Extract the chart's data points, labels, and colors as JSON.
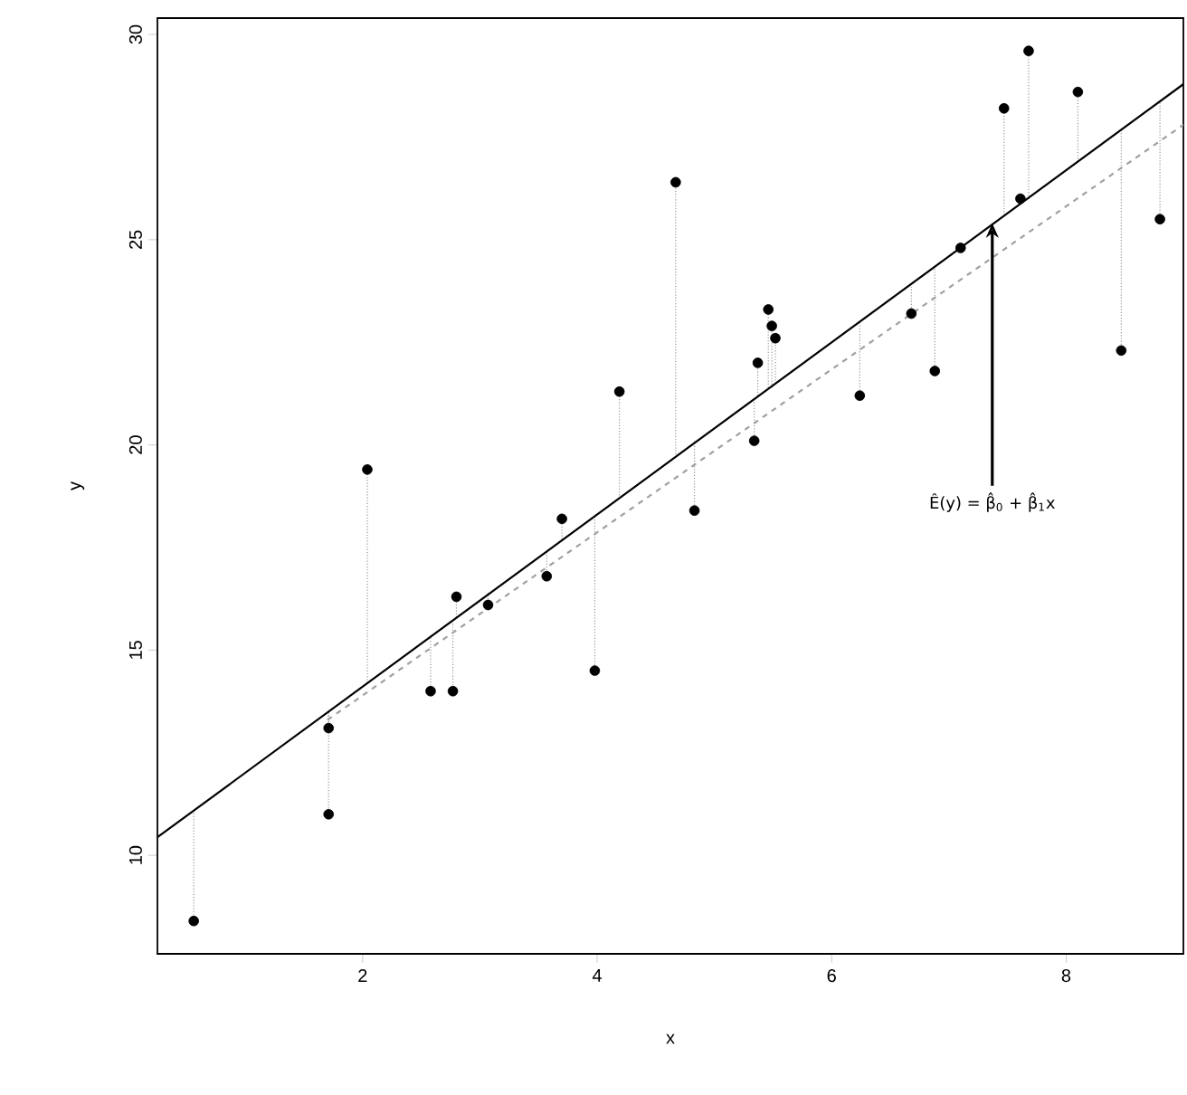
{
  "chart_data": {
    "type": "scatter",
    "xlabel": "x",
    "ylabel": "y",
    "xlim": [
      0.25,
      9.0
    ],
    "ylim": [
      7.6,
      30.4
    ],
    "xticks": [
      2,
      4,
      6,
      8
    ],
    "yticks": [
      10,
      15,
      20,
      25,
      30
    ],
    "series": [
      {
        "color": "#000000",
        "marker": "circle",
        "x": [
          0.56,
          1.71,
          1.71,
          2.04,
          2.58,
          2.77,
          2.8,
          3.07,
          3.57,
          3.7,
          3.98,
          4.19,
          4.67,
          4.83,
          5.34,
          5.37,
          5.46,
          5.49,
          5.52,
          6.24,
          6.68,
          6.88,
          7.1,
          7.47,
          7.61,
          7.68,
          8.1,
          8.47,
          8.8
        ],
        "values": [
          8.4,
          13.1,
          11.0,
          19.4,
          14.0,
          14.0,
          16.3,
          16.1,
          16.8,
          18.2,
          14.5,
          21.3,
          26.4,
          18.4,
          20.1,
          22.0,
          23.3,
          22.9,
          22.6,
          21.2,
          23.2,
          21.8,
          24.8,
          28.2,
          26.0,
          29.6,
          28.6,
          22.3,
          25.5
        ],
        "errors": [
          [
            8.4,
            11.1
          ],
          [
            13.1,
            13.5
          ],
          [
            11.0,
            13.5
          ],
          [
            14.2,
            19.4
          ],
          [
            14.0,
            15.3
          ],
          [
            14.0,
            15.7
          ],
          [
            15.8,
            16.3
          ],
          [
            16.1,
            16.4
          ],
          [
            16.8,
            17.4
          ],
          [
            17.7,
            18.2
          ],
          [
            14.5,
            18.3
          ],
          [
            18.7,
            21.3
          ],
          [
            19.7,
            26.4
          ],
          [
            18.4,
            20.1
          ],
          [
            20.1,
            21.1
          ],
          [
            21.2,
            22.0
          ],
          [
            21.4,
            23.3
          ],
          [
            21.4,
            22.9
          ],
          [
            21.5,
            22.6
          ],
          [
            21.2,
            23.0
          ],
          [
            23.2,
            23.9
          ],
          [
            21.8,
            24.4
          ],
          [
            24.8,
            24.8
          ],
          [
            25.6,
            28.2
          ],
          [
            25.9,
            26.0
          ],
          [
            26.0,
            29.6
          ],
          [
            26.9,
            28.6
          ],
          [
            22.3,
            27.7
          ],
          [
            25.5,
            28.4
          ]
        ]
      },
      {
        "type": "line",
        "color": "#000000",
        "line_style": "solid",
        "marker": "none",
        "x": [
          0.25,
          9.0
        ],
        "values": [
          10.44,
          28.79
        ]
      },
      {
        "type": "line",
        "color": "#a0a0a0",
        "line_style": "dashed",
        "marker": "none",
        "x": [
          1.7,
          9.0
        ],
        "values": [
          13.3,
          27.8
        ]
      }
    ],
    "annotations": [
      {
        "text": "Ê(y) = β̂$_{0}$ + β̂$_{1}$x",
        "x": 7.37,
        "y": 25.4
      }
    ]
  }
}
